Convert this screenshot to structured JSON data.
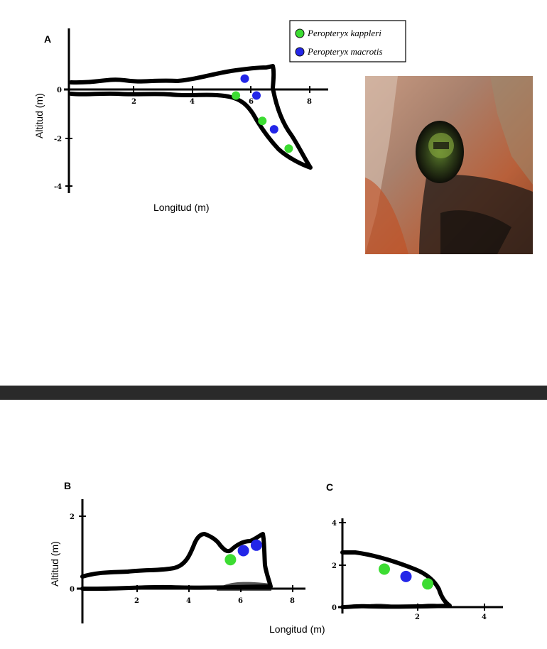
{
  "colors": {
    "kappleri": "#3cdc32",
    "macrotis": "#2326e8",
    "divider": "#2a2a2a"
  },
  "legend": {
    "items": [
      {
        "label": "Peropteryx kappleri",
        "color_key": "kappleri"
      },
      {
        "label": "Peropteryx macrotis",
        "color_key": "macrotis"
      }
    ]
  },
  "photo": {
    "description_icon": "cave-entrance-photo"
  },
  "panels": {
    "A": {
      "label": "A",
      "ylabel": "Altitud (m)",
      "xlabel": "Longitud (m)",
      "xticks": [
        "2",
        "4",
        "6",
        "8"
      ],
      "yticks": [
        "0",
        "-2",
        "-4"
      ]
    },
    "B": {
      "label": "B",
      "ylabel": "Altitud (m)",
      "xticks": [
        "2",
        "4",
        "6",
        "8"
      ],
      "yticks": [
        "2",
        "0"
      ]
    },
    "C": {
      "label": "C",
      "xlabel": "Longitud (m)",
      "xticks": [
        "2",
        "4"
      ],
      "yticks": [
        "4",
        "2",
        "0"
      ]
    }
  },
  "chart_data": [
    {
      "type": "scatter",
      "panel": "A",
      "xlabel": "Longitud (m)",
      "ylabel": "Altitud (m)",
      "xlim": [
        0,
        8.7
      ],
      "ylim": [
        -4.2,
        1.6
      ],
      "series": [
        {
          "name": "Peropteryx kappleri",
          "color_key": "kappleri",
          "x": [
            5.7,
            6.6,
            7.5
          ],
          "y": [
            -0.25,
            -1.3,
            -2.45
          ]
        },
        {
          "name": "Peropteryx macrotis",
          "color_key": "macrotis",
          "x": [
            6.0,
            6.4,
            7.0
          ],
          "y": [
            0.45,
            -0.25,
            -1.65
          ]
        }
      ]
    },
    {
      "type": "scatter",
      "panel": "B",
      "ylabel": "Altitud (m)",
      "xlim": [
        0,
        8.5
      ],
      "ylim": [
        -0.1,
        2.3
      ],
      "series": [
        {
          "name": "Peropteryx kappleri",
          "color_key": "kappleri",
          "x": [
            5.6
          ],
          "y": [
            0.8
          ]
        },
        {
          "name": "Peropteryx macrotis",
          "color_key": "macrotis",
          "x": [
            6.1,
            6.6
          ],
          "y": [
            1.05,
            1.2
          ]
        }
      ]
    },
    {
      "type": "scatter",
      "panel": "C",
      "xlabel": "Longitud (m)",
      "xlim": [
        0,
        4.8
      ],
      "ylim": [
        -0.1,
        4.4
      ],
      "series": [
        {
          "name": "Peropteryx kappleri",
          "color_key": "kappleri",
          "x": [
            1.0,
            2.3
          ],
          "y": [
            1.8,
            1.1
          ]
        },
        {
          "name": "Peropteryx macrotis",
          "color_key": "macrotis",
          "x": [
            1.65
          ],
          "y": [
            1.45
          ]
        }
      ]
    }
  ]
}
